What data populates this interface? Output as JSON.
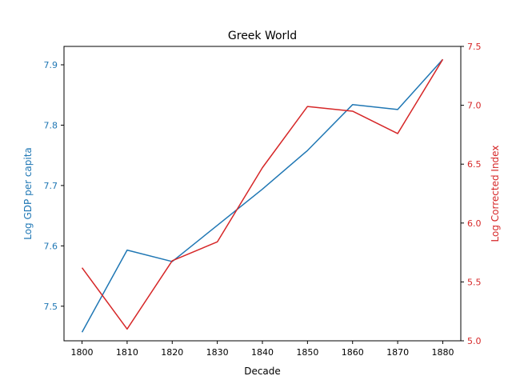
{
  "chart_data": {
    "type": "line",
    "title": "Greek World",
    "xlabel": "Decade",
    "x": [
      1800,
      1810,
      1820,
      1830,
      1840,
      1850,
      1860,
      1870,
      1880
    ],
    "x_ticks": [
      "1800",
      "1810",
      "1820",
      "1830",
      "1840",
      "1850",
      "1860",
      "1870",
      "1880"
    ],
    "xlim": [
      1796,
      1884
    ],
    "grid": false,
    "legend": "none",
    "left_axis": {
      "label": "Log GDP per capita",
      "color": "#1f77b4",
      "ylim": [
        7.4427,
        7.9305
      ],
      "ticks": [
        7.5,
        7.6,
        7.7,
        7.8,
        7.9
      ],
      "tick_labels": [
        "7.5",
        "7.6",
        "7.7",
        "7.8",
        "7.9"
      ]
    },
    "right_axis": {
      "label": "Log Corrected Index",
      "color": "#d62728",
      "ylim": [
        5.0,
        7.5
      ],
      "ticks": [
        5.0,
        5.5,
        6.0,
        6.5,
        7.0,
        7.5
      ],
      "tick_labels": [
        "5.0",
        "5.5",
        "6.0",
        "6.5",
        "7.0",
        "7.5"
      ]
    },
    "series": [
      {
        "axis": "left",
        "color": "#1f77b4",
        "values": [
          7.457,
          7.593,
          7.574,
          7.634,
          7.694,
          7.758,
          7.834,
          7.826,
          7.909
        ]
      },
      {
        "axis": "right",
        "color": "#d62728",
        "values": [
          5.62,
          5.1,
          5.68,
          5.84,
          6.47,
          6.99,
          6.95,
          6.76,
          7.39
        ]
      }
    ]
  }
}
